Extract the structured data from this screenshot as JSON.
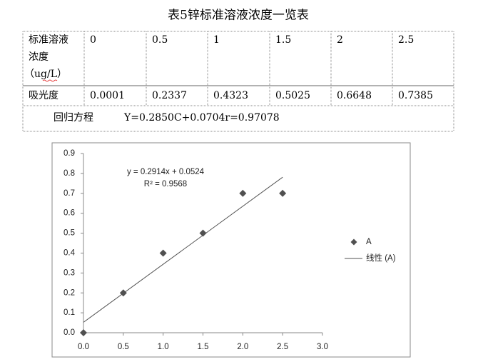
{
  "title": "表5锌标准溶液浓度一览表",
  "table": {
    "rows": [
      [
        [
          "标准溶液",
          "浓度",
          "（ug/L）"
        ],
        "0",
        "0.5",
        "1",
        "1.5",
        "2",
        "2.5"
      ],
      [
        "吸光度",
        "0.0001",
        "0.2337",
        "0.4323",
        "0.5025",
        "0.6648",
        "0.7385"
      ]
    ],
    "regression": {
      "label": "回归方程",
      "equation": "Y=0.2850C+0.0704r=0.97078"
    }
  },
  "chart_data": {
    "type": "scatter",
    "x": [
      0,
      0.5,
      1,
      1.5,
      2,
      2.5
    ],
    "series": [
      {
        "name": "A",
        "color": "#505050",
        "values": [
          0,
          0.2,
          0.4,
          0.5,
          0.7,
          0.7
        ]
      }
    ],
    "xlim": [
      0,
      3
    ],
    "ylim": [
      0,
      0.9
    ],
    "xticks": [
      {
        "value": 0,
        "label": "0.0"
      },
      0.5,
      {
        "value": 1,
        "label": "1.0"
      },
      1.5,
      {
        "value": 2,
        "label": "2.0"
      },
      2.5,
      {
        "value": 3,
        "label": "3.0"
      }
    ],
    "yticks": [
      {
        "value": 0,
        "label": "0.0"
      },
      0.1,
      0.2,
      0.3,
      0.4,
      0.5,
      0.6,
      0.7,
      0.8,
      0.9
    ],
    "grid": false,
    "legend": "right",
    "trendline": {
      "name": "线性 (A)",
      "equation": "y = 0.2914x + 0.0524",
      "r_squared": "R² = 0.9568",
      "slope": 0.2914,
      "intercept": 0.0524,
      "xlim": [
        0,
        2.5
      ],
      "color": "#505050"
    }
  }
}
